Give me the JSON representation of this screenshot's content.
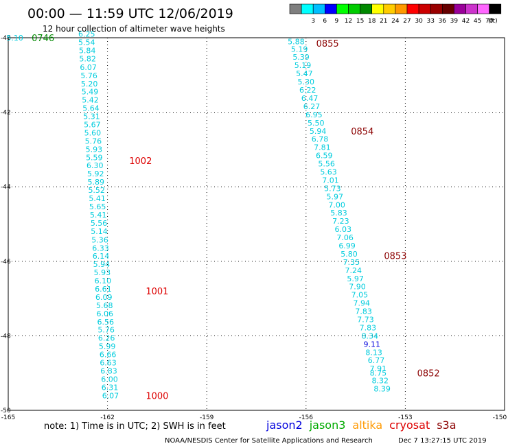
{
  "header": {
    "title": "00:00 — 11:59 UTC 12/06/2019",
    "subtitle": "12 hour collection of altimeter wave heights"
  },
  "colorbar": {
    "unit": "(ft)",
    "bins": [
      {
        "label": "",
        "color": "#7f7f7f"
      },
      {
        "label": "3",
        "color": "#00ffff"
      },
      {
        "label": "6",
        "color": "#00bfff"
      },
      {
        "label": "9",
        "color": "#0000ff"
      },
      {
        "label": "12",
        "color": "#00ff00"
      },
      {
        "label": "15",
        "color": "#00cc00"
      },
      {
        "label": "18",
        "color": "#008800"
      },
      {
        "label": "21",
        "color": "#ffff00"
      },
      {
        "label": "24",
        "color": "#ffcc00"
      },
      {
        "label": "27",
        "color": "#ff9900"
      },
      {
        "label": "30",
        "color": "#ff0000"
      },
      {
        "label": "33",
        "color": "#cc0000"
      },
      {
        "label": "36",
        "color": "#990000"
      },
      {
        "label": "39",
        "color": "#660000"
      },
      {
        "label": "42",
        "color": "#990099"
      },
      {
        "label": "45",
        "color": "#cc33cc"
      },
      {
        "label": "70",
        "color": "#ff66ff"
      },
      {
        "label": "",
        "color": "#000000"
      }
    ]
  },
  "map": {
    "lon_labels": [
      "-165",
      "-162",
      "-159",
      "-156",
      "-153",
      "-150"
    ],
    "lat_labels": [
      "-40",
      "-42",
      "-44",
      "-46",
      "-48",
      "-50"
    ]
  },
  "tracks": [
    {
      "color": "#00ccdd",
      "points": [
        {
          "lon": -164.8,
          "lat": -40.0,
          "v": "5.10"
        },
        {
          "lon": -162.63,
          "lat": -39.9,
          "v": "6.25"
        },
        {
          "lon": -162.63,
          "lat": -40.12,
          "v": "5.54"
        },
        {
          "lon": -162.61,
          "lat": -40.34,
          "v": "5.84"
        },
        {
          "lon": -162.6,
          "lat": -40.56,
          "v": "5.82"
        },
        {
          "lon": -162.58,
          "lat": -40.79,
          "v": "6.07"
        },
        {
          "lon": -162.56,
          "lat": -41.01,
          "v": "5.76"
        },
        {
          "lon": -162.55,
          "lat": -41.23,
          "v": "5.20"
        },
        {
          "lon": -162.53,
          "lat": -41.45,
          "v": "5.49"
        },
        {
          "lon": -162.52,
          "lat": -41.67,
          "v": "5.42"
        },
        {
          "lon": -162.5,
          "lat": -41.89,
          "v": "5.64"
        },
        {
          "lon": -162.48,
          "lat": -42.11,
          "v": "5.31"
        },
        {
          "lon": -162.46,
          "lat": -42.33,
          "v": "5.67"
        },
        {
          "lon": -162.45,
          "lat": -42.55,
          "v": "5.60"
        },
        {
          "lon": -162.43,
          "lat": -42.77,
          "v": "5.76"
        },
        {
          "lon": -162.41,
          "lat": -42.99,
          "v": "5.93"
        },
        {
          "lon": -162.4,
          "lat": -43.21,
          "v": "5.59"
        },
        {
          "lon": -162.38,
          "lat": -43.43,
          "v": "6.30"
        },
        {
          "lon": -162.36,
          "lat": -43.65,
          "v": "5.92"
        },
        {
          "lon": -162.35,
          "lat": -43.87,
          "v": "5.89"
        },
        {
          "lon": -162.33,
          "lat": -44.09,
          "v": "5.52"
        },
        {
          "lon": -162.31,
          "lat": -44.31,
          "v": "5.41"
        },
        {
          "lon": -162.3,
          "lat": -44.53,
          "v": "5.65"
        },
        {
          "lon": -162.28,
          "lat": -44.75,
          "v": "5.41"
        },
        {
          "lon": -162.26,
          "lat": -44.97,
          "v": "5.56"
        },
        {
          "lon": -162.25,
          "lat": -45.19,
          "v": "5.14"
        },
        {
          "lon": -162.23,
          "lat": -45.42,
          "v": "5.36"
        },
        {
          "lon": -162.21,
          "lat": -45.64,
          "v": "6.33"
        },
        {
          "lon": -162.2,
          "lat": -45.86,
          "v": "6.14"
        },
        {
          "lon": -162.18,
          "lat": -46.08,
          "v": "5.94"
        },
        {
          "lon": -162.16,
          "lat": -46.3,
          "v": "5.93"
        },
        {
          "lon": -162.14,
          "lat": -46.52,
          "v": "6.10"
        },
        {
          "lon": -162.13,
          "lat": -46.74,
          "v": "6.61"
        },
        {
          "lon": -162.11,
          "lat": -46.96,
          "v": "6.09"
        },
        {
          "lon": -162.09,
          "lat": -47.18,
          "v": "5.68"
        },
        {
          "lon": -162.08,
          "lat": -47.4,
          "v": "6.06"
        },
        {
          "lon": -162.06,
          "lat": -47.62,
          "v": "6.56"
        },
        {
          "lon": -162.04,
          "lat": -47.84,
          "v": "5.76"
        },
        {
          "lon": -162.03,
          "lat": -48.06,
          "v": "6.26"
        },
        {
          "lon": -162.01,
          "lat": -48.28,
          "v": "5.99"
        },
        {
          "lon": -161.99,
          "lat": -48.5,
          "v": "6.66"
        },
        {
          "lon": -161.98,
          "lat": -48.72,
          "v": "6.63"
        },
        {
          "lon": -161.96,
          "lat": -48.94,
          "v": "6.83"
        },
        {
          "lon": -161.94,
          "lat": -49.16,
          "v": "6.00"
        },
        {
          "lon": -161.93,
          "lat": -49.38,
          "v": "6.31"
        },
        {
          "lon": -161.91,
          "lat": -49.6,
          "v": "6.07"
        }
      ]
    },
    {
      "color": "#00ccdd",
      "points": [
        {
          "lon": -156.3,
          "lat": -40.1,
          "v": "5.88"
        },
        {
          "lon": -156.2,
          "lat": -40.3,
          "v": "5.19"
        },
        {
          "lon": -156.15,
          "lat": -40.52,
          "v": "5.39"
        },
        {
          "lon": -156.1,
          "lat": -40.74,
          "v": "5.19"
        },
        {
          "lon": -156.05,
          "lat": -40.96,
          "v": "5.47"
        },
        {
          "lon": -156.0,
          "lat": -41.18,
          "v": "5.30"
        },
        {
          "lon": -155.95,
          "lat": -41.4,
          "v": "6.22"
        },
        {
          "lon": -155.89,
          "lat": -41.62,
          "v": "6.47"
        },
        {
          "lon": -155.83,
          "lat": -41.84,
          "v": "6.27"
        },
        {
          "lon": -155.76,
          "lat": -42.06,
          "v": "6.95"
        },
        {
          "lon": -155.7,
          "lat": -42.28,
          "v": "5.50"
        },
        {
          "lon": -155.64,
          "lat": -42.5,
          "v": "5.94"
        },
        {
          "lon": -155.58,
          "lat": -42.72,
          "v": "6.78"
        },
        {
          "lon": -155.51,
          "lat": -42.94,
          "v": "7.81"
        },
        {
          "lon": -155.45,
          "lat": -43.16,
          "v": "6.59"
        },
        {
          "lon": -155.38,
          "lat": -43.38,
          "v": "5.56"
        },
        {
          "lon": -155.32,
          "lat": -43.6,
          "v": "5.63"
        },
        {
          "lon": -155.26,
          "lat": -43.82,
          "v": "7.01"
        },
        {
          "lon": -155.2,
          "lat": -44.04,
          "v": "5.73"
        },
        {
          "lon": -155.13,
          "lat": -44.26,
          "v": "5.97"
        },
        {
          "lon": -155.07,
          "lat": -44.48,
          "v": "7.00"
        },
        {
          "lon": -155.01,
          "lat": -44.7,
          "v": "5.83"
        },
        {
          "lon": -154.95,
          "lat": -44.92,
          "v": "7.23"
        },
        {
          "lon": -154.88,
          "lat": -45.14,
          "v": "6.03"
        },
        {
          "lon": -154.82,
          "lat": -45.36,
          "v": "7.06"
        },
        {
          "lon": -154.76,
          "lat": -45.58,
          "v": "6.99"
        },
        {
          "lon": -154.7,
          "lat": -45.8,
          "v": "5.80"
        },
        {
          "lon": -154.63,
          "lat": -46.02,
          "v": "7.35"
        },
        {
          "lon": -154.57,
          "lat": -46.24,
          "v": "7.24"
        },
        {
          "lon": -154.51,
          "lat": -46.46,
          "v": "5.97"
        },
        {
          "lon": -154.45,
          "lat": -46.68,
          "v": "7.90"
        },
        {
          "lon": -154.38,
          "lat": -46.9,
          "v": "7.05"
        },
        {
          "lon": -154.32,
          "lat": -47.12,
          "v": "7.94"
        },
        {
          "lon": -154.26,
          "lat": -47.34,
          "v": "7.83"
        },
        {
          "lon": -154.2,
          "lat": -47.56,
          "v": "7.73"
        },
        {
          "lon": -154.13,
          "lat": -47.78,
          "v": "7.83"
        },
        {
          "lon": -154.07,
          "lat": -48.0,
          "v": "8.34"
        },
        {
          "lon": -154.01,
          "lat": -48.22,
          "v": "9.11",
          "color": "#0000dd"
        },
        {
          "lon": -153.95,
          "lat": -48.44,
          "v": "8.13"
        },
        {
          "lon": -153.88,
          "lat": -48.66,
          "v": "6.77"
        },
        {
          "lon": -153.82,
          "lat": -48.88,
          "v": "7.91"
        },
        {
          "lon": -153.82,
          "lat": -49.0,
          "v": "8.75"
        },
        {
          "lon": -153.76,
          "lat": -49.2,
          "v": "8.32"
        },
        {
          "lon": -153.7,
          "lat": -49.42,
          "v": "8.39"
        }
      ]
    }
  ],
  "time_labels": [
    {
      "text": "0746",
      "color": "#008800",
      "lon": -163.95,
      "lat": -40.0
    },
    {
      "text": "1002",
      "color": "#dd0000",
      "lon": -161.0,
      "lat": -43.3
    },
    {
      "text": "1001",
      "color": "#dd0000",
      "lon": -160.5,
      "lat": -46.8
    },
    {
      "text": "1000",
      "color": "#dd0000",
      "lon": -160.5,
      "lat": -49.6
    },
    {
      "text": "0855",
      "color": "#8b0000",
      "lon": -155.35,
      "lat": -40.15
    },
    {
      "text": "0854",
      "color": "#8b0000",
      "lon": -154.3,
      "lat": -42.5
    },
    {
      "text": "0853",
      "color": "#8b0000",
      "lon": -153.3,
      "lat": -45.85
    },
    {
      "text": "0852",
      "color": "#8b0000",
      "lon": -152.3,
      "lat": -49.0
    }
  ],
  "footer": {
    "note": "note:  1) Time is in UTC;  2) SWH is in feet",
    "satellites": [
      {
        "name": "jason2",
        "color": "#0000dd"
      },
      {
        "name": "jason3",
        "color": "#00aa00"
      },
      {
        "name": "altika",
        "color": "#ff9900"
      },
      {
        "name": "cryosat",
        "color": "#dd0000"
      },
      {
        "name": "s3a",
        "color": "#8b0000"
      }
    ],
    "credit": "NOAA/NESDIS Center for Satellite Applications and Research",
    "timestamp": "Dec  7 13:27:15 UTC 2019"
  }
}
